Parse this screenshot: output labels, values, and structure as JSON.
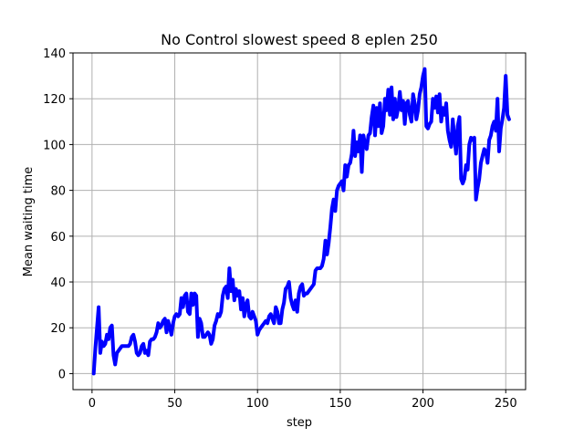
{
  "chart_data": {
    "type": "line",
    "title": "No Control slowest speed 8 eplen 250",
    "xlabel": "step",
    "ylabel": "Mean waiting time",
    "xlim": [
      -11.5,
      262
    ],
    "ylim": [
      -7,
      140
    ],
    "xticks": [
      0,
      50,
      100,
      150,
      200,
      250
    ],
    "yticks": [
      0,
      20,
      40,
      60,
      80,
      100,
      120,
      140
    ],
    "grid": true,
    "line_color": "#0000ff",
    "series": [
      {
        "x": [
          1,
          2,
          3,
          4,
          5,
          6,
          7,
          8,
          9,
          10,
          11,
          12,
          13,
          14,
          15,
          16,
          17,
          18,
          19,
          20,
          21,
          22,
          23,
          24,
          25,
          26,
          27,
          28,
          29,
          30,
          31,
          32,
          33,
          34,
          35,
          36,
          37,
          38,
          39,
          40,
          41,
          42,
          43,
          44,
          45,
          46,
          47,
          48,
          49,
          50,
          51,
          52,
          53,
          54,
          55,
          56,
          57,
          58,
          59,
          60,
          61,
          62,
          63,
          64,
          65,
          66,
          67,
          68,
          69,
          70,
          71,
          72,
          73,
          74,
          75,
          76,
          77,
          78,
          79,
          80,
          81,
          82,
          83,
          84,
          85,
          86,
          87,
          88,
          89,
          90,
          91,
          92,
          93,
          94,
          95,
          96,
          97,
          98,
          99,
          100,
          101,
          102,
          103,
          104,
          105,
          106,
          107,
          108,
          109,
          110,
          111,
          112,
          113,
          114,
          115,
          116,
          117,
          118,
          119,
          120,
          121,
          122,
          123,
          124,
          125,
          126,
          127,
          128,
          129,
          130,
          131,
          132,
          133,
          134,
          135,
          136,
          137,
          138,
          139,
          140,
          141,
          142,
          143,
          144,
          145,
          146,
          147,
          148,
          149,
          150,
          151,
          152,
          153,
          154,
          155,
          156,
          157,
          158,
          159,
          160,
          161,
          162,
          163,
          164,
          165,
          166,
          167,
          168,
          169,
          170,
          171,
          172,
          173,
          174,
          175,
          176,
          177,
          178,
          179,
          180,
          181,
          182,
          183,
          184,
          185,
          186,
          187,
          188,
          189,
          190,
          191,
          192,
          193,
          194,
          195,
          196,
          197,
          198,
          199,
          200,
          201,
          202,
          203,
          204,
          205,
          206,
          207,
          208,
          209,
          210,
          211,
          212,
          213,
          214,
          215,
          216,
          217,
          218,
          219,
          220,
          221,
          222,
          223,
          224,
          225,
          226,
          227,
          228,
          229,
          230,
          231,
          232,
          233,
          234,
          235,
          236,
          237,
          238,
          239,
          240,
          241,
          242,
          243,
          244,
          245,
          246,
          247,
          248,
          249,
          250,
          251,
          252
        ],
        "values": [
          0,
          11,
          20,
          29,
          9,
          14,
          12,
          13,
          17,
          15,
          20,
          21,
          8,
          4,
          9,
          10,
          11,
          12,
          12,
          12,
          12,
          12,
          13,
          16,
          17,
          14,
          9,
          8,
          9,
          12,
          13,
          9,
          10,
          8,
          14,
          15,
          15,
          16,
          18,
          22,
          20,
          21,
          23,
          24,
          18,
          23,
          20,
          17,
          22,
          25,
          26,
          25,
          26,
          33,
          29,
          34,
          35,
          27,
          26,
          35,
          30,
          35,
          34,
          16,
          24,
          22,
          16,
          16,
          17,
          18,
          17,
          13,
          15,
          21,
          23,
          26,
          25,
          27,
          34,
          37,
          38,
          33,
          46,
          36,
          41,
          32,
          37,
          34,
          36,
          28,
          33,
          25,
          30,
          32,
          25,
          24,
          27,
          25,
          23,
          17,
          19,
          20,
          21,
          22,
          23,
          22,
          25,
          26,
          24,
          22,
          29,
          27,
          22,
          22,
          28,
          31,
          37,
          38,
          40,
          33,
          30,
          28,
          32,
          27,
          35,
          38,
          39,
          34,
          35,
          35,
          36,
          37,
          38,
          39,
          45,
          46,
          46,
          46,
          47,
          50,
          58,
          52,
          57,
          64,
          72,
          76,
          71,
          80,
          82,
          83,
          84,
          80,
          91,
          86,
          91,
          92,
          96,
          106,
          95,
          101,
          97,
          104,
          88,
          104,
          100,
          98,
          104,
          105,
          112,
          117,
          104,
          116,
          108,
          118,
          105,
          108,
          120,
          115,
          124,
          113,
          125,
          111,
          120,
          112,
          116,
          123,
          115,
          119,
          109,
          118,
          119,
          113,
          110,
          122,
          118,
          111,
          115,
          122,
          125,
          130,
          133,
          108,
          107,
          109,
          110,
          120,
          116,
          121,
          114,
          122,
          110,
          116,
          113,
          118,
          106,
          102,
          99,
          111,
          103,
          96,
          108,
          112,
          85,
          83,
          85,
          91,
          89,
          100,
          103,
          102,
          103,
          76,
          81,
          85,
          92,
          95,
          98,
          97,
          92,
          102,
          104,
          108,
          110,
          106,
          120,
          97,
          107,
          111,
          116,
          130,
          113,
          111
        ]
      }
    ]
  }
}
